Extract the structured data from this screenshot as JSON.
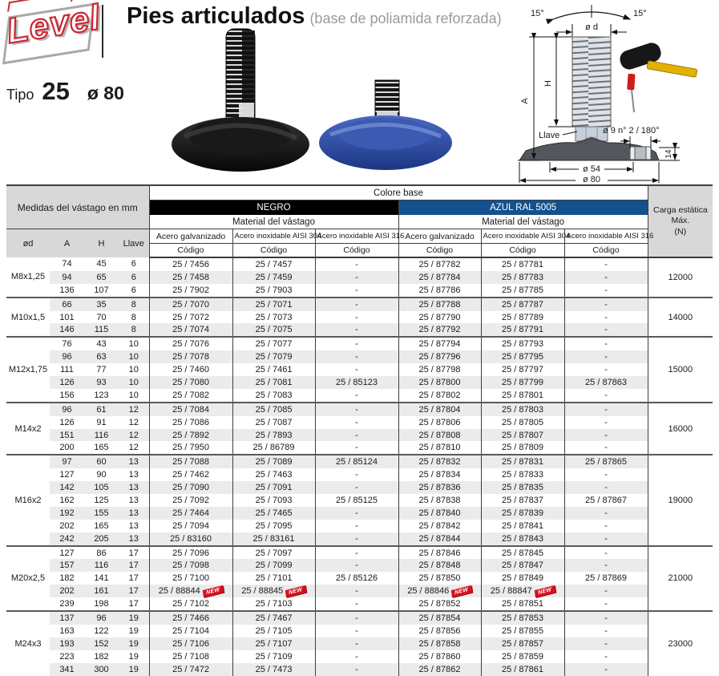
{
  "page": {
    "logo_text": "Level",
    "title": "Pies articulados",
    "subtitle": "(base de poliamida reforzada)",
    "type_label": "Tipo",
    "type_value": "25",
    "diameter_value": "ø 80"
  },
  "diagram": {
    "angle_left": "15°",
    "angle_right": "15°",
    "dim_d": "ø d",
    "dim_h": "H",
    "dim_a": "A",
    "llave_label": "Llave",
    "hole_label": "ø 9 n° 2 / 180°",
    "dim_14": "14",
    "dim_54": "ø 54",
    "dim_80": "ø 80"
  },
  "colors": {
    "negro_bar": "#000000",
    "azul_bar": "#14518f",
    "stripe": "#ebebeb",
    "new_red": "#d6111e",
    "logo_red": "#cc2630"
  },
  "table": {
    "measures_header": "Medidas del vástago en mm",
    "colore_base": "Colore base",
    "negro": "NEGRO",
    "azul": "AZUL RAL 5005",
    "material": "Material del vástago",
    "materials": [
      "Acero galvanizado",
      "Acero inoxidable AISI 304",
      "Acero inoxidable AISI 316"
    ],
    "codigo": "Código",
    "dim_cols": [
      "ød",
      "A",
      "H",
      "Llave"
    ],
    "carga_lines": [
      "Carga estática",
      "Máx.",
      "(N)"
    ],
    "new_badge": "NEW",
    "groups": [
      {
        "od": "M8x1,25",
        "carga": "12000",
        "rows": [
          {
            "dims": [
              "74",
              "45",
              "6"
            ],
            "codes": [
              "25 / 7456",
              "25 / 7457",
              "-",
              "25 / 87782",
              "25 / 87781",
              "-"
            ]
          },
          {
            "dims": [
              "94",
              "65",
              "6"
            ],
            "codes": [
              "25 / 7458",
              "25 / 7459",
              "-",
              "25 / 87784",
              "25 / 87783",
              "-"
            ]
          },
          {
            "dims": [
              "136",
              "107",
              "6"
            ],
            "codes": [
              "25 / 7902",
              "25 / 7903",
              "-",
              "25 / 87786",
              "25 / 87785",
              "-"
            ]
          }
        ]
      },
      {
        "od": "M10x1,5",
        "carga": "14000",
        "rows": [
          {
            "dims": [
              "66",
              "35",
              "8"
            ],
            "codes": [
              "25 / 7070",
              "25 / 7071",
              "-",
              "25 / 87788",
              "25 / 87787",
              "-"
            ]
          },
          {
            "dims": [
              "101",
              "70",
              "8"
            ],
            "codes": [
              "25 / 7072",
              "25 / 7073",
              "-",
              "25 / 87790",
              "25 / 87789",
              "-"
            ]
          },
          {
            "dims": [
              "146",
              "115",
              "8"
            ],
            "codes": [
              "25 / 7074",
              "25 / 7075",
              "-",
              "25 / 87792",
              "25 / 87791",
              "-"
            ]
          }
        ]
      },
      {
        "od": "M12x1,75",
        "carga": "15000",
        "rows": [
          {
            "dims": [
              "76",
              "43",
              "10"
            ],
            "codes": [
              "25 / 7076",
              "25 / 7077",
              "-",
              "25 / 87794",
              "25 / 87793",
              "-"
            ]
          },
          {
            "dims": [
              "96",
              "63",
              "10"
            ],
            "codes": [
              "25 / 7078",
              "25 / 7079",
              "-",
              "25 / 87796",
              "25 / 87795",
              "-"
            ]
          },
          {
            "dims": [
              "111",
              "77",
              "10"
            ],
            "codes": [
              "25 / 7460",
              "25 / 7461",
              "-",
              "25 / 87798",
              "25 / 87797",
              "-"
            ]
          },
          {
            "dims": [
              "126",
              "93",
              "10"
            ],
            "codes": [
              "25 / 7080",
              "25 / 7081",
              "25 / 85123",
              "25 / 87800",
              "25 / 87799",
              "25 / 87863"
            ]
          },
          {
            "dims": [
              "156",
              "123",
              "10"
            ],
            "codes": [
              "25 / 7082",
              "25 / 7083",
              "-",
              "25 / 87802",
              "25 / 87801",
              "-"
            ]
          }
        ]
      },
      {
        "od": "M14x2",
        "carga": "16000",
        "rows": [
          {
            "dims": [
              "96",
              "61",
              "12"
            ],
            "codes": [
              "25 / 7084",
              "25 / 7085",
              "-",
              "25 / 87804",
              "25 / 87803",
              "-"
            ]
          },
          {
            "dims": [
              "126",
              "91",
              "12"
            ],
            "codes": [
              "25 / 7086",
              "25 / 7087",
              "-",
              "25 / 87806",
              "25 / 87805",
              "-"
            ]
          },
          {
            "dims": [
              "151",
              "116",
              "12"
            ],
            "codes": [
              "25 / 7892",
              "25 / 7893",
              "-",
              "25 / 87808",
              "25 / 87807",
              "-"
            ]
          },
          {
            "dims": [
              "200",
              "165",
              "12"
            ],
            "codes": [
              "25 / 7950",
              "25 / 86789",
              "-",
              "25 / 87810",
              "25 / 87809",
              "-"
            ]
          }
        ]
      },
      {
        "od": "M16x2",
        "carga": "19000",
        "rows": [
          {
            "dims": [
              "97",
              "60",
              "13"
            ],
            "codes": [
              "25 / 7088",
              "25 / 7089",
              "25 / 85124",
              "25 / 87832",
              "25 / 87831",
              "25 / 87865"
            ]
          },
          {
            "dims": [
              "127",
              "90",
              "13"
            ],
            "codes": [
              "25 / 7462",
              "25 / 7463",
              "-",
              "25 / 87834",
              "25 / 87833",
              "-"
            ]
          },
          {
            "dims": [
              "142",
              "105",
              "13"
            ],
            "codes": [
              "25 / 7090",
              "25 / 7091",
              "-",
              "25 / 87836",
              "25 / 87835",
              "-"
            ]
          },
          {
            "dims": [
              "162",
              "125",
              "13"
            ],
            "codes": [
              "25 / 7092",
              "25 / 7093",
              "25 / 85125",
              "25 / 87838",
              "25 / 87837",
              "25 / 87867"
            ]
          },
          {
            "dims": [
              "192",
              "155",
              "13"
            ],
            "codes": [
              "25 / 7464",
              "25 / 7465",
              "-",
              "25 / 87840",
              "25 / 87839",
              "-"
            ]
          },
          {
            "dims": [
              "202",
              "165",
              "13"
            ],
            "codes": [
              "25 / 7094",
              "25 / 7095",
              "-",
              "25 / 87842",
              "25 / 87841",
              "-"
            ]
          },
          {
            "dims": [
              "242",
              "205",
              "13"
            ],
            "codes": [
              "25 / 83160",
              "25 / 83161",
              "-",
              "25 / 87844",
              "25 / 87843",
              "-"
            ]
          }
        ]
      },
      {
        "od": "M20x2,5",
        "carga": "21000",
        "rows": [
          {
            "dims": [
              "127",
              "86",
              "17"
            ],
            "codes": [
              "25 / 7096",
              "25 / 7097",
              "-",
              "25 / 87846",
              "25 / 87845",
              "-"
            ]
          },
          {
            "dims": [
              "157",
              "116",
              "17"
            ],
            "codes": [
              "25 / 7098",
              "25 / 7099",
              "-",
              "25 / 87848",
              "25 / 87847",
              "-"
            ]
          },
          {
            "dims": [
              "182",
              "141",
              "17"
            ],
            "codes": [
              "25 / 7100",
              "25 / 7101",
              "25 / 85126",
              "25 / 87850",
              "25 / 87849",
              "25 / 87869"
            ]
          },
          {
            "dims": [
              "202",
              "161",
              "17"
            ],
            "codes": [
              "25 / 88844",
              "25 / 88845",
              "-",
              "25 / 88846",
              "25 / 88847",
              "-"
            ],
            "new": [
              0,
              1,
              3,
              4
            ]
          },
          {
            "dims": [
              "239",
              "198",
              "17"
            ],
            "codes": [
              "25 / 7102",
              "25 / 7103",
              "-",
              "25 / 87852",
              "25 / 87851",
              "-"
            ]
          }
        ]
      },
      {
        "od": "M24x3",
        "carga": "23000",
        "rows": [
          {
            "dims": [
              "137",
              "96",
              "19"
            ],
            "codes": [
              "25 / 7466",
              "25 / 7467",
              "-",
              "25 / 87854",
              "25 / 87853",
              "-"
            ]
          },
          {
            "dims": [
              "163",
              "122",
              "19"
            ],
            "codes": [
              "25 / 7104",
              "25 / 7105",
              "-",
              "25 / 87856",
              "25 / 87855",
              "-"
            ]
          },
          {
            "dims": [
              "193",
              "152",
              "19"
            ],
            "codes": [
              "25 / 7106",
              "25 / 7107",
              "-",
              "25 / 87858",
              "25 / 87857",
              "-"
            ]
          },
          {
            "dims": [
              "223",
              "182",
              "19"
            ],
            "codes": [
              "25 / 7108",
              "25 / 7109",
              "-",
              "25 / 87860",
              "25 / 87859",
              "-"
            ]
          },
          {
            "dims": [
              "341",
              "300",
              "19"
            ],
            "codes": [
              "25 / 7472",
              "25 / 7473",
              "-",
              "25 / 87862",
              "25 / 87861",
              "-"
            ]
          }
        ]
      }
    ]
  }
}
